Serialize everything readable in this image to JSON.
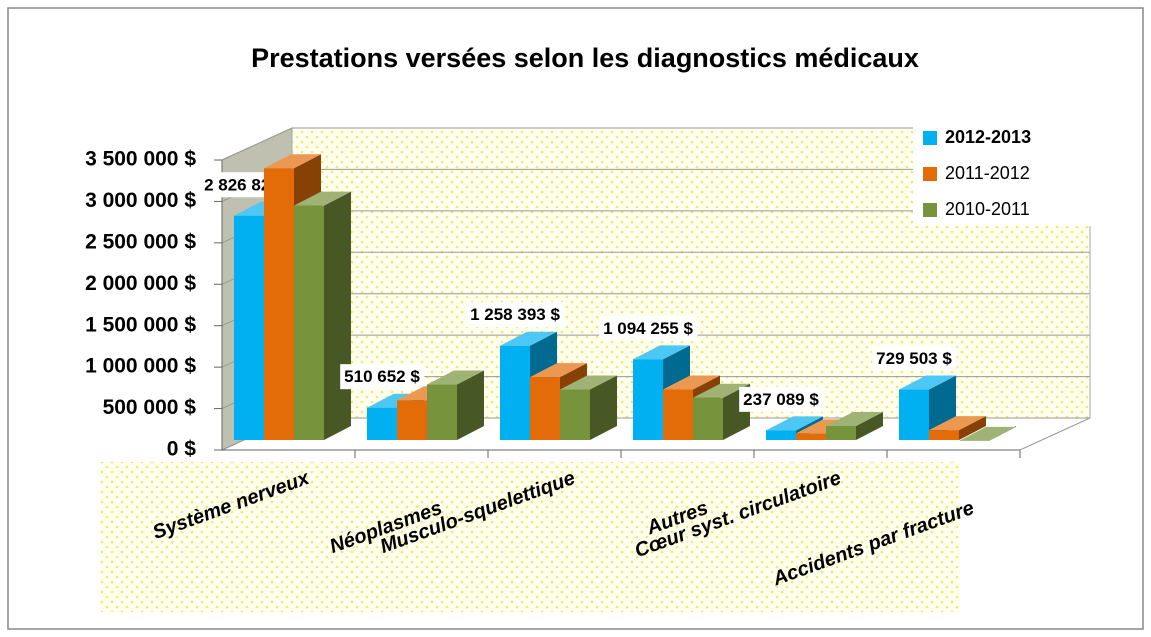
{
  "chart_data": {
    "type": "bar3d",
    "title": "Prestations versées selon les diagnostics médicaux",
    "categories": [
      "Système nerveux",
      "Néoplasmes",
      "Musculo-squelettique",
      "Autres",
      "Cœur syst. circulatoire",
      "Accidents par fracture"
    ],
    "series": [
      {
        "name": "2012-2013",
        "color": "#00b0f0",
        "values": [
          2826825,
          510652,
          1258393,
          1094255,
          237089,
          729503
        ],
        "value_labels": [
          "2 826 825 $",
          "510 652 $",
          "1 258 393 $",
          "1 094 255 $",
          "237 089 $",
          "729 503 $"
        ]
      },
      {
        "name": "2011-2012",
        "color": "#e36c09",
        "values": [
          3400000,
          600000,
          880000,
          730000,
          200000,
          240000
        ]
      },
      {
        "name": "2010-2011",
        "color": "#77933c",
        "values": [
          2950000,
          790000,
          730000,
          630000,
          290000,
          110000
        ]
      }
    ],
    "ylim": [
      0,
      3500000
    ],
    "yticks": [
      {
        "value": 0,
        "label": "0 $"
      },
      {
        "value": 500000,
        "label": "500 000 $"
      },
      {
        "value": 1000000,
        "label": "1 000 000 $"
      },
      {
        "value": 1500000,
        "label": "1 500 000 $"
      },
      {
        "value": 2000000,
        "label": "2 000 000 $"
      },
      {
        "value": 2500000,
        "label": "2 500 000 $"
      },
      {
        "value": 3000000,
        "label": "3 000 000 $"
      },
      {
        "value": 3500000,
        "label": "3 500 000 $"
      }
    ],
    "grid": true,
    "legend": "top-right"
  }
}
